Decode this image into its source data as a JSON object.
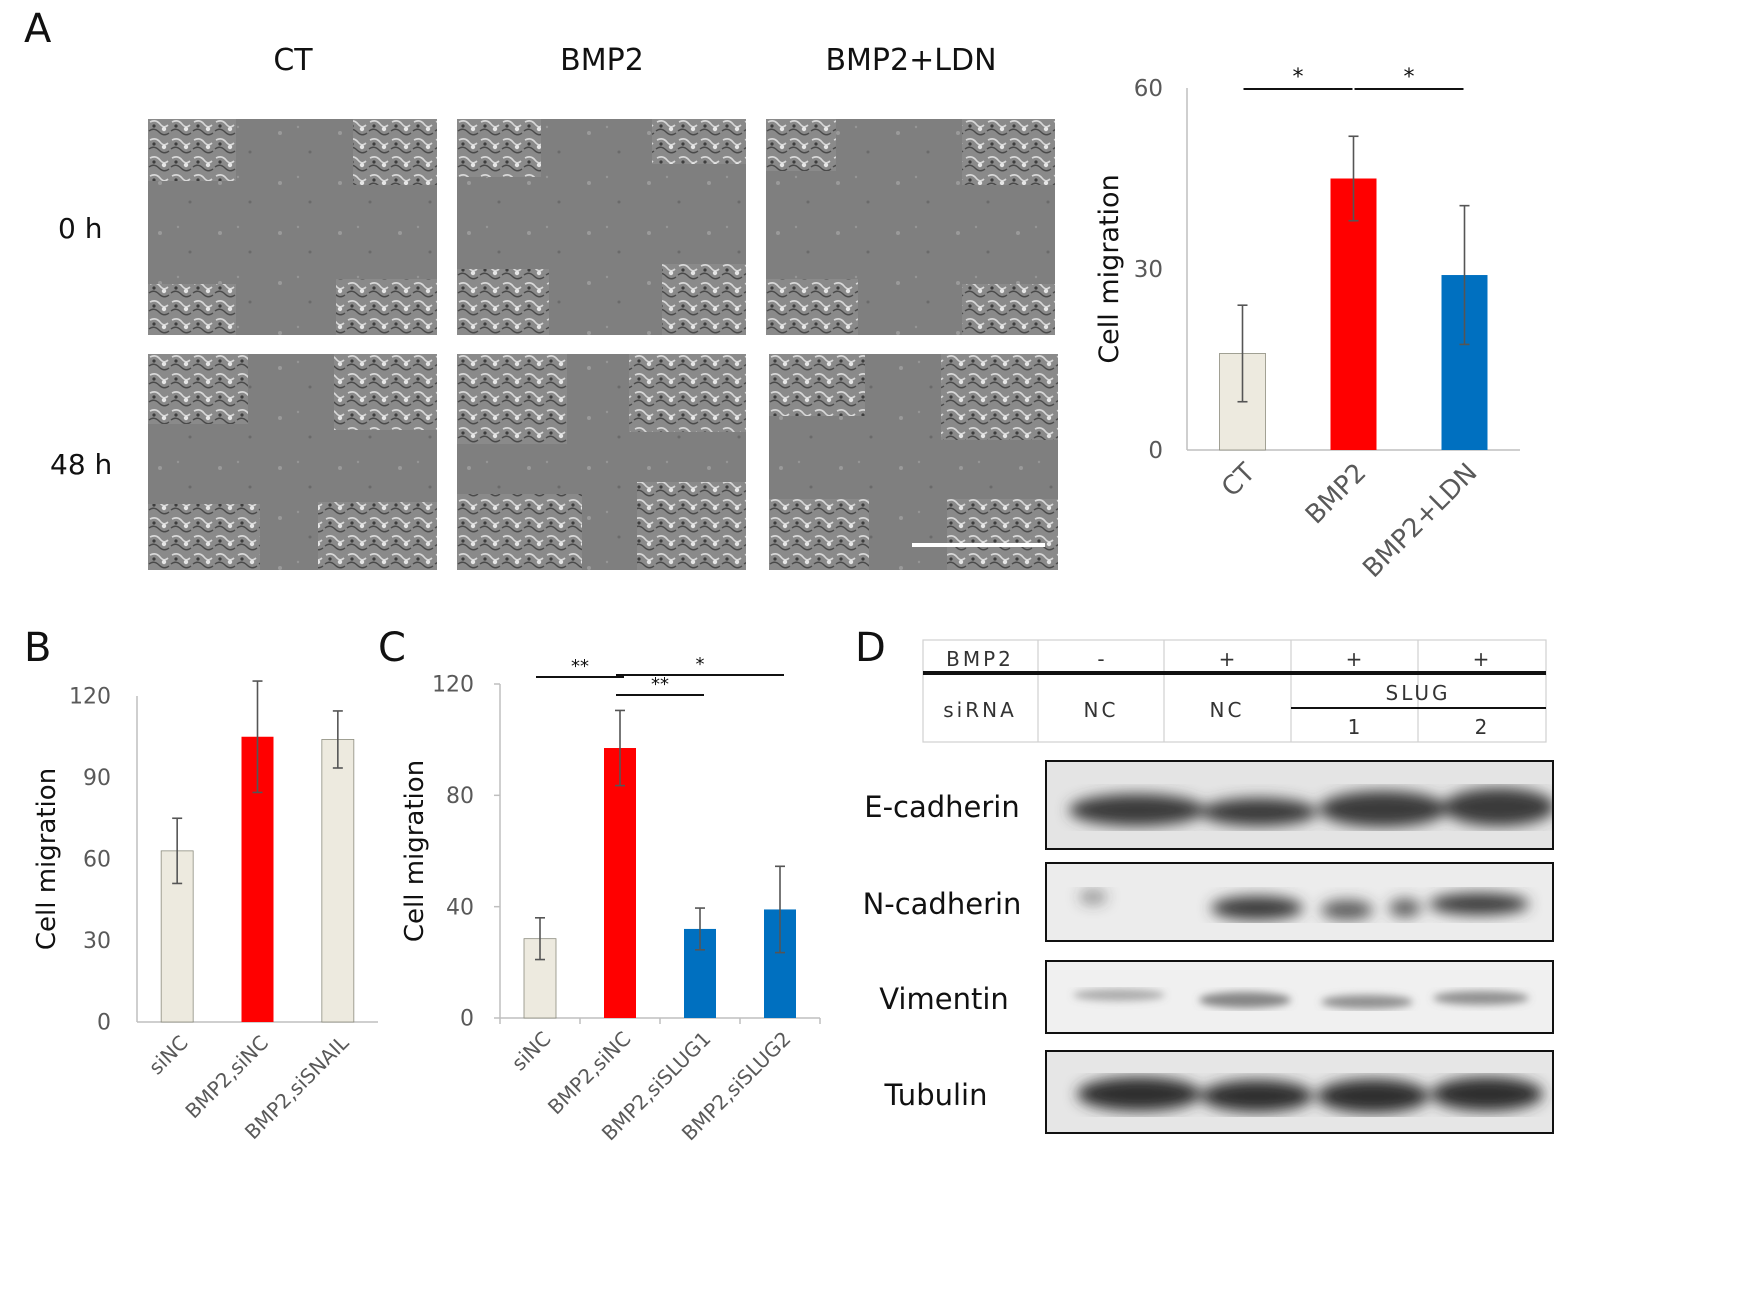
{
  "panelA": {
    "letter": "A",
    "columns": [
      "CT",
      "BMP2",
      "BMP2+LDN"
    ],
    "rows": [
      "0 h",
      "48 h"
    ]
  },
  "panelB": {
    "letter": "B"
  },
  "panelC": {
    "letter": "C"
  },
  "panelD": {
    "letter": "D",
    "table": {
      "bmp2_label": "BMP2",
      "bmp2_values": [
        "-",
        "+",
        "+",
        "+"
      ],
      "sirna_label": "siRNA",
      "sirna_values": [
        "NC",
        "NC"
      ],
      "slug_label": "SLUG",
      "slug_numbers": [
        "1",
        "2"
      ]
    },
    "blot_labels": [
      "E-cadherin",
      "N-cadherin",
      "Vimentin",
      "Tubulin"
    ]
  },
  "colors": {
    "ct": "#edeadf",
    "bmp2": "#ff0000",
    "ldn": "#0070c0",
    "axis": "#bfbfbf",
    "tick_text": "#595959"
  },
  "chart_data": [
    {
      "id": "A",
      "type": "bar",
      "categories": [
        "CT",
        "BMP2",
        "BMP2+LDN"
      ],
      "values": [
        16,
        45,
        29
      ],
      "errors": [
        8,
        7,
        11.5
      ],
      "colors": [
        "#edeadf",
        "#ff0000",
        "#0070c0"
      ],
      "ylabel": "Cell migration",
      "ylim": [
        0,
        60
      ],
      "yticks": [
        0,
        30,
        60
      ],
      "significance": [
        {
          "from": 0,
          "to": 1,
          "label": "*"
        },
        {
          "from": 1,
          "to": 2,
          "label": "*"
        }
      ]
    },
    {
      "id": "B",
      "type": "bar",
      "categories": [
        "siNC",
        "BMP2,siNC",
        "BMP2,siSNAIL"
      ],
      "values": [
        63,
        105,
        104
      ],
      "errors": [
        12,
        20.5,
        10.5
      ],
      "colors": [
        "#edeadf",
        "#ff0000",
        "#edeadf"
      ],
      "ylabel": "Cell migration",
      "ylim": [
        0,
        120
      ],
      "yticks": [
        0,
        30,
        60,
        90,
        120
      ],
      "significance": []
    },
    {
      "id": "C",
      "type": "bar",
      "categories": [
        "siNC",
        "BMP2,siNC",
        "BMP2,siSLUG1",
        "BMP2,siSLUG2"
      ],
      "values": [
        28.5,
        97,
        32,
        39
      ],
      "errors": [
        7.5,
        13.5,
        7.5,
        15.5
      ],
      "colors": [
        "#edeadf",
        "#ff0000",
        "#0070c0",
        "#0070c0"
      ],
      "ylabel": "Cell migration",
      "ylim": [
        0,
        120
      ],
      "yticks": [
        0,
        40,
        80,
        120
      ],
      "significance": [
        {
          "from": 0,
          "to": 1,
          "label": "**"
        },
        {
          "from": 1,
          "to": 2,
          "label": "**"
        },
        {
          "from": 1,
          "to": 3,
          "label": "*"
        }
      ]
    }
  ]
}
